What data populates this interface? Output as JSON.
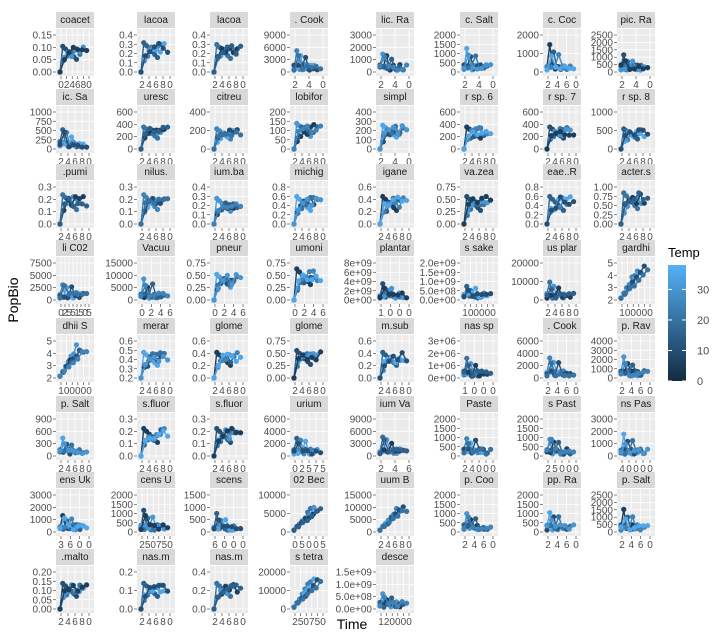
{
  "chart_data": {
    "type": "scatter",
    "title": "",
    "xlabel": "Time",
    "ylabel": "PopBio",
    "legend": {
      "title": "Temp",
      "placement": "right",
      "ticks": [
        0,
        10,
        20,
        30
      ],
      "range": [
        0,
        38
      ],
      "color_low": "#132B43",
      "color_high": "#56B1F7"
    },
    "colors": {
      "panel_bg": "#ebebeb",
      "strip_bg": "#d9d9d9",
      "grid": "#ffffff",
      "axis_text": "#4d4d4d",
      "strip_text": "#1a1a1a"
    },
    "facets": [
      {
        "strip": "coacet",
        "yticks": [
          "0.00",
          "0.05",
          "0.10",
          "0.15"
        ],
        "xticks": [
          "0",
          "2",
          "4",
          "6",
          "8",
          "0"
        ],
        "ymax": 0.18,
        "shape": "rise",
        "p": 0.7
      },
      {
        "strip": "lacoa",
        "yticks": [
          "0.0",
          "0.1",
          "0.2",
          "0.3",
          "0.4"
        ],
        "xticks": [
          "2",
          "4",
          "6",
          "8",
          "0"
        ],
        "ymax": 0.45,
        "shape": "rise",
        "p": 0.8
      },
      {
        "strip": "lacoa",
        "yticks": [
          "0.0",
          "0.1",
          "0.2",
          "0.3",
          "0.4"
        ],
        "xticks": [
          "2",
          "4",
          "6",
          "8",
          "0"
        ],
        "ymax": 0.45,
        "shape": "rise",
        "p": 0.75
      },
      {
        "strip": ". Cook",
        "yticks": [
          "0",
          "3000",
          "6000",
          "9000"
        ],
        "xticks": [
          "2",
          "4",
          "0"
        ],
        "ymax": 11000,
        "shape": "spike",
        "p": 0.5
      },
      {
        "strip": "lic. Ra",
        "yticks": [
          "0",
          "1000",
          "2000",
          "3000"
        ],
        "xticks": [
          "2",
          "4",
          "0"
        ],
        "ymax": 3600,
        "shape": "spike",
        "p": 0.45
      },
      {
        "strip": "c. Salt",
        "yticks": [
          "0",
          "500",
          "1000",
          "1500",
          "2000"
        ],
        "xticks": [
          "2",
          "4",
          "0"
        ],
        "ymax": 2300,
        "shape": "spike",
        "p": 0.5
      },
      {
        "strip": "c. Coc",
        "yticks": [
          "0",
          "1000",
          "2000"
        ],
        "xticks": [
          "2",
          "4",
          "6",
          "0"
        ],
        "ymax": 2500,
        "shape": "spike",
        "p": 0.55
      },
      {
        "strip": "pic. Ra",
        "yticks": [
          "0",
          "500",
          "1000",
          "1500",
          "2000",
          "2500"
        ],
        "xticks": [
          "2",
          "4",
          "0"
        ],
        "ymax": 2700,
        "shape": "spike",
        "p": 0.4
      },
      {
        "strip": "ic. Sa",
        "yticks": [
          "0",
          "250",
          "500",
          "750",
          "1000"
        ],
        "xticks": [
          "2",
          "4",
          "6",
          "8",
          "0"
        ],
        "ymax": 1100,
        "shape": "spike",
        "p": 0.45
      },
      {
        "strip": "uresc",
        "yticks": [
          "0",
          "200",
          "400",
          "600"
        ],
        "xticks": [
          "2",
          "4",
          "6",
          "8",
          "0"
        ],
        "ymax": 700,
        "shape": "rise",
        "p": 0.6
      },
      {
        "strip": "citreu",
        "yticks": [
          "0",
          "200",
          "400"
        ],
        "xticks": [
          "2",
          "4",
          "6",
          "8",
          "0"
        ],
        "ymax": 520,
        "shape": "rise",
        "p": 0.55
      },
      {
        "strip": "lobifor",
        "yticks": [
          "0",
          "50",
          "100",
          "150",
          "200"
        ],
        "xticks": [
          "2",
          "4",
          "6",
          "8",
          "0"
        ],
        "ymax": 220,
        "shape": "rise",
        "p": 0.7
      },
      {
        "strip": "simpl",
        "yticks": [
          "0",
          "100",
          "200",
          "300",
          "400"
        ],
        "xticks": [
          "2",
          "4",
          "0"
        ],
        "ymax": 450,
        "shape": "rise",
        "p": 0.65
      },
      {
        "strip": "r sp. 6",
        "yticks": [
          "0",
          "200",
          "400",
          "600"
        ],
        "xticks": [
          "2",
          "4",
          "6",
          "8",
          "0"
        ],
        "ymax": 700,
        "shape": "rise",
        "p": 0.6
      },
      {
        "strip": "r sp. 7",
        "yticks": [
          "0",
          "200",
          "400",
          "600"
        ],
        "xticks": [
          "2",
          "4",
          "6",
          "8",
          "0"
        ],
        "ymax": 700,
        "shape": "rise",
        "p": 0.6
      },
      {
        "strip": "r sp. 8",
        "yticks": [
          "0",
          "500",
          "1000"
        ],
        "xticks": [
          "2",
          "4",
          "6",
          "8",
          "0"
        ],
        "ymax": 1200,
        "shape": "rise",
        "p": 0.55
      },
      {
        "strip": ".pumi",
        "yticks": [
          "0.0",
          "0.1",
          "0.2",
          "0.3"
        ],
        "xticks": [
          "2",
          "4",
          "6",
          "8",
          "0"
        ],
        "ymax": 0.34,
        "shape": "rise",
        "p": 0.8
      },
      {
        "strip": "nilus.",
        "yticks": [
          "0.0",
          "0.1",
          "0.2",
          "0.3"
        ],
        "xticks": [
          "2",
          "4",
          "6",
          "8",
          "0"
        ],
        "ymax": 0.34,
        "shape": "rise",
        "p": 0.8
      },
      {
        "strip": "ium.ba",
        "yticks": [
          "0.0",
          "0.1",
          "0.2",
          "0.3",
          "0.4"
        ],
        "xticks": [
          "2",
          "4",
          "6",
          "8",
          "0"
        ],
        "ymax": 0.45,
        "shape": "rise",
        "p": 0.7
      },
      {
        "strip": "michig",
        "yticks": [
          "0.0",
          "0.2",
          "0.4",
          "0.6",
          "0.8"
        ],
        "xticks": [
          "2",
          "4",
          "6",
          "8",
          "0"
        ],
        "ymax": 0.88,
        "shape": "rise",
        "p": 0.75
      },
      {
        "strip": "igane",
        "yticks": [
          "0.0",
          "0.2",
          "0.4",
          "0.6"
        ],
        "xticks": [
          "2",
          "4",
          "6",
          "8",
          "0"
        ],
        "ymax": 0.7,
        "shape": "rise",
        "p": 0.75
      },
      {
        "strip": "va.zea",
        "yticks": [
          "0.00",
          "0.25",
          "0.50",
          "0.75"
        ],
        "xticks": [
          "2",
          "4",
          "6",
          "8",
          "0"
        ],
        "ymax": 0.85,
        "shape": "rise",
        "p": 0.75
      },
      {
        "strip": "eae..R",
        "yticks": [
          "0.0",
          "0.2",
          "0.4",
          "0.6",
          "0.8"
        ],
        "xticks": [
          "2",
          "4",
          "6",
          "8",
          "0"
        ],
        "ymax": 0.88,
        "shape": "rise",
        "p": 0.75
      },
      {
        "strip": "acter.s",
        "yticks": [
          "0.00",
          "0.25",
          "0.50",
          "0.75",
          "1.00"
        ],
        "xticks": [
          "2",
          "4",
          "6",
          "8",
          "0"
        ],
        "ymax": 1.05,
        "shape": "rise",
        "p": 0.85
      },
      {
        "strip": "li C02",
        "yticks": [
          "0",
          "2500",
          "5000",
          "7500"
        ],
        "xticks": [
          "0",
          "2",
          "5",
          "5",
          "1",
          "5",
          "0",
          "5"
        ],
        "ymax": 9000,
        "shape": "spike",
        "p": 0.4
      },
      {
        "strip": "Vacuu",
        "yticks": [
          "0",
          "5000",
          "10000",
          "15000"
        ],
        "xticks": [
          "0",
          "2",
          "4",
          "6"
        ],
        "ymax": 17000,
        "shape": "spike",
        "p": 0.45
      },
      {
        "strip": "pneur",
        "yticks": [
          "0.00",
          "0.25",
          "0.50",
          "0.75"
        ],
        "xticks": [
          "0",
          "2",
          "4",
          "6"
        ],
        "ymax": 0.85,
        "shape": "rise",
        "p": 0.7
      },
      {
        "strip": "umoni",
        "yticks": [
          "0.00",
          "0.25",
          "0.50",
          "0.75"
        ],
        "xticks": [
          "0",
          "2",
          "4",
          "6"
        ],
        "ymax": 0.85,
        "shape": "rise",
        "p": 0.85
      },
      {
        "strip": "plantar",
        "yticks": [
          "0e+00",
          "2e+09",
          "4e+09",
          "6e+09",
          "8e+09"
        ],
        "xticks": [
          "1",
          "0",
          "0",
          "0"
        ],
        "ymax": 9000000000.0,
        "shape": "spike",
        "p": 0.35
      },
      {
        "strip": "s sake",
        "yticks": [
          "0.0e+00",
          "5.0e+08",
          "1.0e+09",
          "1.5e+09",
          "2.0e+09"
        ],
        "xticks": [
          "1",
          "0",
          "0",
          "0",
          "0",
          "0"
        ],
        "ymax": 2200000000.0,
        "shape": "spike",
        "p": 0.35
      },
      {
        "strip": "us plar",
        "yticks": [
          "0",
          "10000",
          "20000"
        ],
        "xticks": [
          "2",
          "4",
          "6",
          "8",
          "0"
        ],
        "ymax": 25000,
        "shape": "spike",
        "p": 0.4
      },
      {
        "strip": "gardhi",
        "yticks": [
          "2",
          "3",
          "4",
          "5"
        ],
        "xticks": [
          "1",
          "0",
          "0",
          "0",
          "0",
          "0"
        ],
        "ymax": 5.5,
        "shape": "line",
        "p": 0.8
      },
      {
        "strip": "dhii S",
        "yticks": [
          "2",
          "3",
          "4",
          "5"
        ],
        "xticks": [
          "1",
          "0",
          "0",
          "0",
          "0",
          "0"
        ],
        "ymax": 5.5,
        "shape": "line",
        "p": 0.8
      },
      {
        "strip": "merar",
        "yticks": [
          "0.2",
          "0.3",
          "0.4",
          "0.5",
          "0.6"
        ],
        "xticks": [
          "2",
          "4",
          "6",
          "8",
          "0"
        ],
        "ymax": 0.65,
        "shape": "rise",
        "p": 0.7
      },
      {
        "strip": "glome",
        "yticks": [
          "0.0",
          "0.2",
          "0.4",
          "0.6"
        ],
        "xticks": [
          "2",
          "4",
          "6",
          "8",
          "0"
        ],
        "ymax": 0.7,
        "shape": "rise",
        "p": 0.7
      },
      {
        "strip": "glome",
        "yticks": [
          "0.00",
          "0.25",
          "0.50",
          "0.75"
        ],
        "xticks": [
          "2",
          "4",
          "6",
          "8",
          "0"
        ],
        "ymax": 0.85,
        "shape": "rise",
        "p": 0.75
      },
      {
        "strip": "m.sub",
        "yticks": [
          "0.0",
          "0.2",
          "0.4",
          "0.6"
        ],
        "xticks": [
          "2",
          "4",
          "6",
          "8",
          "0"
        ],
        "ymax": 0.7,
        "shape": "rise",
        "p": 0.7
      },
      {
        "strip": "nas sp",
        "yticks": [
          "0e+00",
          "1e+06",
          "2e+06",
          "3e+06"
        ],
        "xticks": [
          "1",
          "0",
          "0",
          "0"
        ],
        "ymax": 3500000.0,
        "shape": "spike",
        "p": 0.4
      },
      {
        "strip": ". Cook",
        "yticks": [
          "0",
          "2000",
          "4000",
          "6000"
        ],
        "xticks": [
          "2",
          "4",
          "6",
          "0"
        ],
        "ymax": 7000,
        "shape": "spike",
        "p": 0.45
      },
      {
        "strip": "p. Rav",
        "yticks": [
          "0",
          "1000",
          "2000",
          "3000",
          "4000"
        ],
        "xticks": [
          "2",
          "4",
          "6",
          "0"
        ],
        "ymax": 4600,
        "shape": "spike",
        "p": 0.45
      },
      {
        "strip": "p. Salt",
        "yticks": [
          "0",
          "300",
          "600",
          "900"
        ],
        "xticks": [
          "2",
          "4",
          "6",
          "8",
          "0"
        ],
        "ymax": 1000,
        "shape": "spike",
        "p": 0.4
      },
      {
        "strip": "s.fluor",
        "yticks": [
          "0.0",
          "0.1",
          "0.2",
          "0.3"
        ],
        "xticks": [
          "2",
          "4",
          "6",
          "8",
          "0"
        ],
        "ymax": 0.34,
        "shape": "rise",
        "p": 0.75
      },
      {
        "strip": "s.fluor",
        "yticks": [
          "0.0",
          "0.1",
          "0.2",
          "0.3"
        ],
        "xticks": [
          "2",
          "4",
          "6",
          "8",
          "0"
        ],
        "ymax": 0.34,
        "shape": "rise",
        "p": 0.75
      },
      {
        "strip": "urium",
        "yticks": [
          "0",
          "2000",
          "4000",
          "6000"
        ],
        "xticks": [
          "0",
          "2",
          "5",
          "7",
          "5"
        ],
        "ymax": 7000,
        "shape": "spike",
        "p": 0.45
      },
      {
        "strip": "ium Va",
        "yticks": [
          "0",
          "3000",
          "6000",
          "9000"
        ],
        "xticks": [
          "2",
          "4",
          "6"
        ],
        "ymax": 10000,
        "shape": "spike",
        "p": 0.45
      },
      {
        "strip": "Paste",
        "yticks": [
          "0",
          "500",
          "1000",
          "1500",
          "2000"
        ],
        "xticks": [
          "2",
          "4",
          "0",
          "0",
          "0"
        ],
        "ymax": 2300,
        "shape": "spike",
        "p": 0.45
      },
      {
        "strip": "s Past",
        "yticks": [
          "0",
          "500",
          "1000",
          "1500",
          "2000"
        ],
        "xticks": [
          "2",
          "5",
          "0",
          "0",
          "0"
        ],
        "ymax": 2300,
        "shape": "spike",
        "p": 0.45
      },
      {
        "strip": "ns Pas",
        "yticks": [
          "0",
          "1000",
          "2000",
          "3000"
        ],
        "xticks": [
          "4",
          "0",
          "0",
          "0",
          "0"
        ],
        "ymax": 3400,
        "shape": "spike",
        "p": 0.45
      },
      {
        "strip": "ens Uk",
        "yticks": [
          "0",
          "1000",
          "2000",
          "3000"
        ],
        "xticks": [
          "3",
          "6",
          "0",
          "0"
        ],
        "ymax": 3400,
        "shape": "spike",
        "p": 0.4
      },
      {
        "strip": "cens U",
        "yticks": [
          "0",
          "500",
          "1000",
          "1500",
          "2000"
        ],
        "xticks": [
          "2",
          "5",
          "0",
          "7",
          "5",
          "0"
        ],
        "ymax": 2300,
        "shape": "spike",
        "p": 0.45
      },
      {
        "strip": "scens",
        "yticks": [
          "0",
          "500",
          "1000",
          "1500"
        ],
        "xticks": [
          "6",
          "0",
          "0",
          "0"
        ],
        "ymax": 1700,
        "shape": "spike",
        "p": 0.4
      },
      {
        "strip": "02 Bec",
        "yticks": [
          "0",
          "5000",
          "10000"
        ],
        "xticks": [
          "0",
          "5",
          "0",
          "0",
          "5"
        ],
        "ymax": 12000,
        "shape": "line",
        "p": 0.6
      },
      {
        "strip": "uum B",
        "yticks": [
          "0",
          "5000",
          "10000",
          "15000"
        ],
        "xticks": [
          "2",
          "4",
          "6",
          "8",
          "0"
        ],
        "ymax": 17000,
        "shape": "line",
        "p": 0.6
      },
      {
        "strip": "p. Coo",
        "yticks": [
          "0",
          "500",
          "1000",
          "1500",
          "2000"
        ],
        "xticks": [
          "2",
          "4",
          "6",
          "0"
        ],
        "ymax": 2300,
        "shape": "spike",
        "p": 0.45
      },
      {
        "strip": "pp. Ra",
        "yticks": [
          "0",
          "500",
          "1000",
          "1500",
          "2000"
        ],
        "xticks": [
          "2",
          "4",
          "6",
          "0"
        ],
        "ymax": 2300,
        "shape": "spike",
        "p": 0.45
      },
      {
        "strip": "p. Salt",
        "yticks": [
          "0",
          "500",
          "1000",
          "1500",
          "2000",
          "2500"
        ],
        "xticks": [
          "2",
          "4",
          "6",
          "0"
        ],
        "ymax": 2700,
        "shape": "spike",
        "p": 0.45
      },
      {
        "strip": ".malto",
        "yticks": [
          "0.00",
          "0.05",
          "0.10",
          "0.15",
          "0.20"
        ],
        "xticks": [
          "2",
          "4",
          "6",
          "8",
          "0"
        ],
        "ymax": 0.23,
        "shape": "rise",
        "p": 0.7
      },
      {
        "strip": "nas.m",
        "yticks": [
          "0.0",
          "0.1",
          "0.2"
        ],
        "xticks": [
          "2",
          "4",
          "6",
          "8",
          "0"
        ],
        "ymax": 0.25,
        "shape": "rise",
        "p": 0.7
      },
      {
        "strip": "nas.m",
        "yticks": [
          "0.0",
          "0.2",
          "0.4"
        ],
        "xticks": [
          "2",
          "4",
          "6",
          "8",
          "0"
        ],
        "ymax": 0.5,
        "shape": "rise",
        "p": 0.7
      },
      {
        "strip": "s tetra",
        "yticks": [
          "0",
          "10000",
          "20000"
        ],
        "xticks": [
          "2",
          "5",
          "0",
          "7",
          "5",
          "0"
        ],
        "ymax": 24000,
        "shape": "line",
        "p": 0.7
      },
      {
        "strip": "desce",
        "yticks": [
          "0.0e+00",
          "5.0e+08",
          "1.0e+09",
          "1.5e+09"
        ],
        "xticks": [
          "1",
          "2",
          "0",
          "0",
          "0",
          "0"
        ],
        "ymax": 1700000000.0,
        "shape": "spike",
        "p": 0.35
      }
    ]
  }
}
